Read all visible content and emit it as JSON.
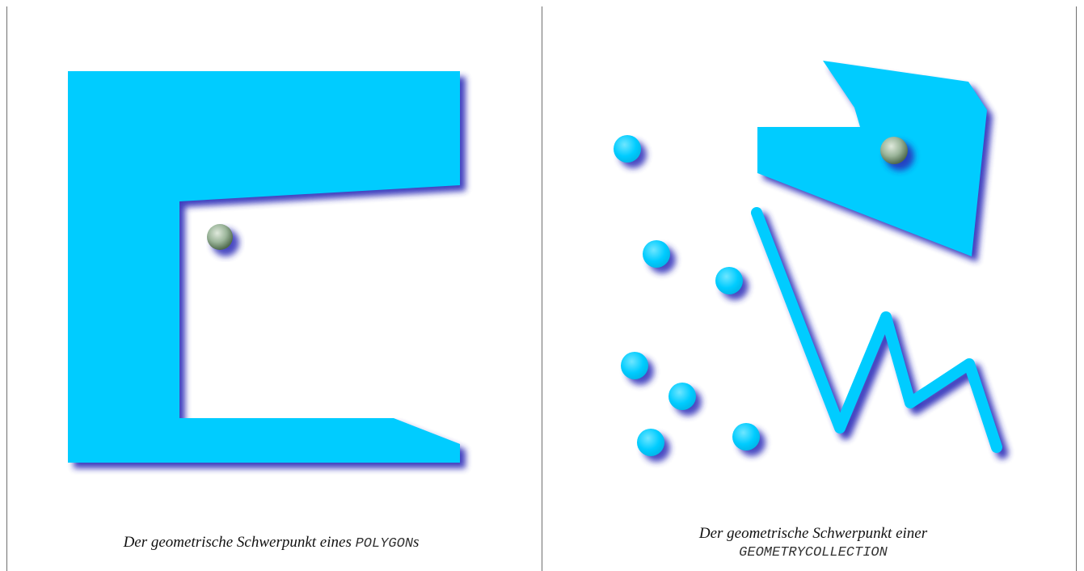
{
  "colors": {
    "shape": "#00ccff",
    "shadow": "#2a2ab8",
    "centroid": "#9bb59a",
    "divider": "#6f6f6f"
  },
  "left": {
    "caption_text": "Der geometrische Schwerpunkt eines ",
    "caption_code": "POLYGON",
    "caption_suffix": "s"
  },
  "right": {
    "caption_text": "Der geometrische Schwerpunkt einer",
    "caption_code": "GEOMETRYCOLLECTION"
  }
}
